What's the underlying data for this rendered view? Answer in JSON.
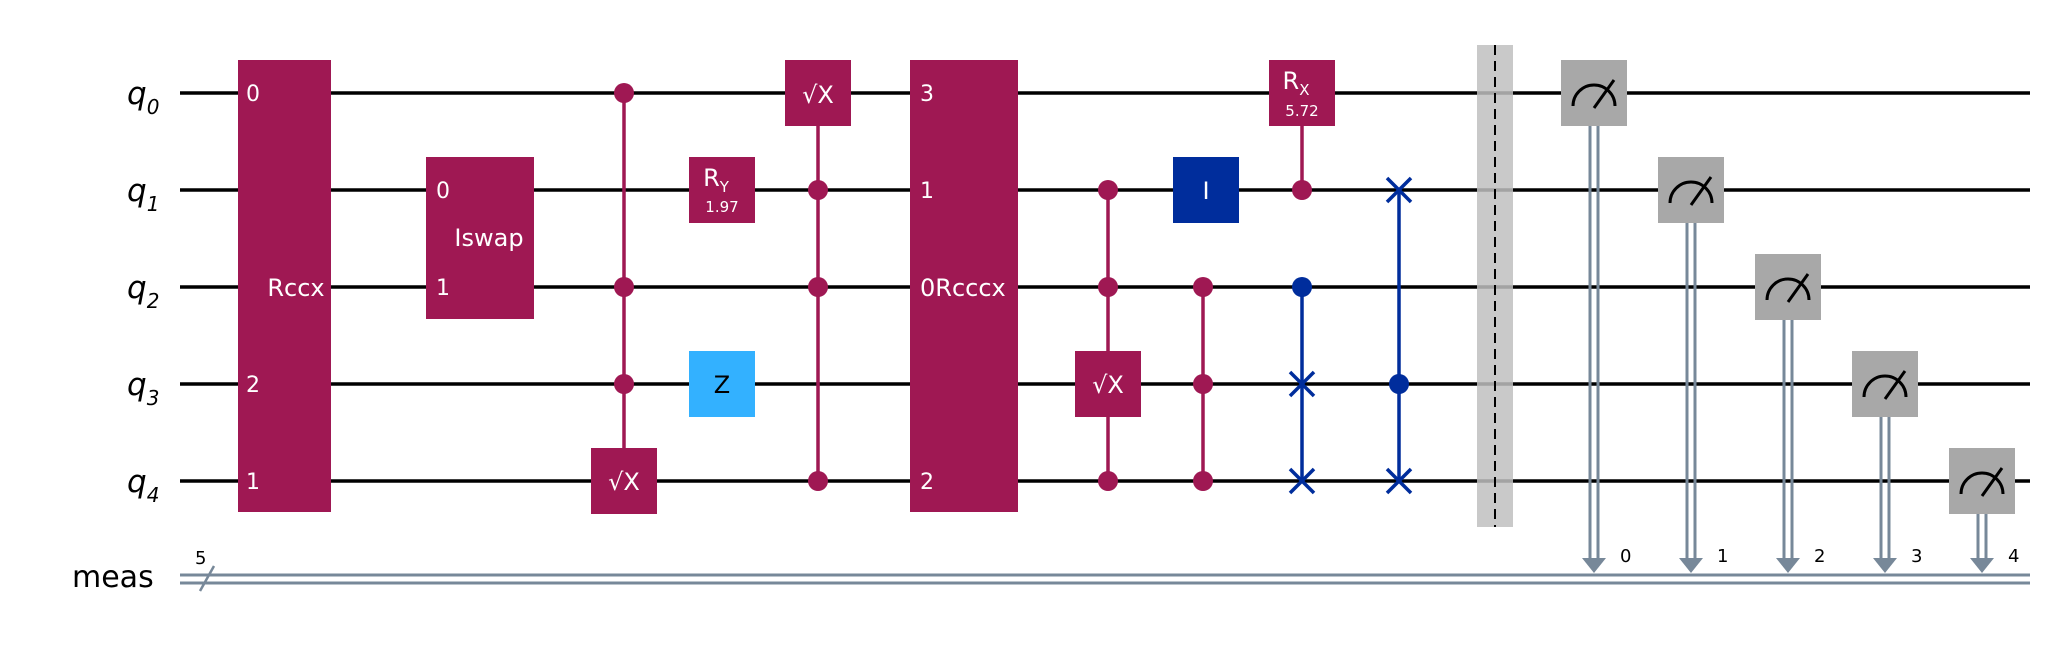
{
  "colors": {
    "wire": "#000000",
    "classical_wire": "#778899",
    "multi_gate": "#9f1853",
    "z_gate": "#33b1ff",
    "i_gate": "#002d9c",
    "swap": "#002d9c",
    "barrier": "#c0c0c0",
    "measure": "#a8a8a8"
  },
  "qubits": [
    {
      "base": "q",
      "index": "0"
    },
    {
      "base": "q",
      "index": "1"
    },
    {
      "base": "q",
      "index": "2"
    },
    {
      "base": "q",
      "index": "3"
    },
    {
      "base": "q",
      "index": "4"
    }
  ],
  "classical": {
    "label": "meas",
    "width": "5"
  },
  "gates": {
    "rccx": {
      "label": "Rccx",
      "ports": [
        "0",
        "2",
        "1"
      ]
    },
    "iswap": {
      "label": "Iswap",
      "ports": [
        "0",
        "1"
      ]
    },
    "sqrtx": "√X",
    "ry": {
      "label": "R",
      "sub": "Y",
      "param": "1.97"
    },
    "z": "Z",
    "rcccx": {
      "label": "0Rcccx",
      "ports": [
        "3",
        "1",
        "2"
      ]
    },
    "i": "I",
    "rx": {
      "label": "R",
      "sub": "X",
      "param": "5.72"
    }
  },
  "measure_targets": [
    "0",
    "1",
    "2",
    "3",
    "4"
  ]
}
